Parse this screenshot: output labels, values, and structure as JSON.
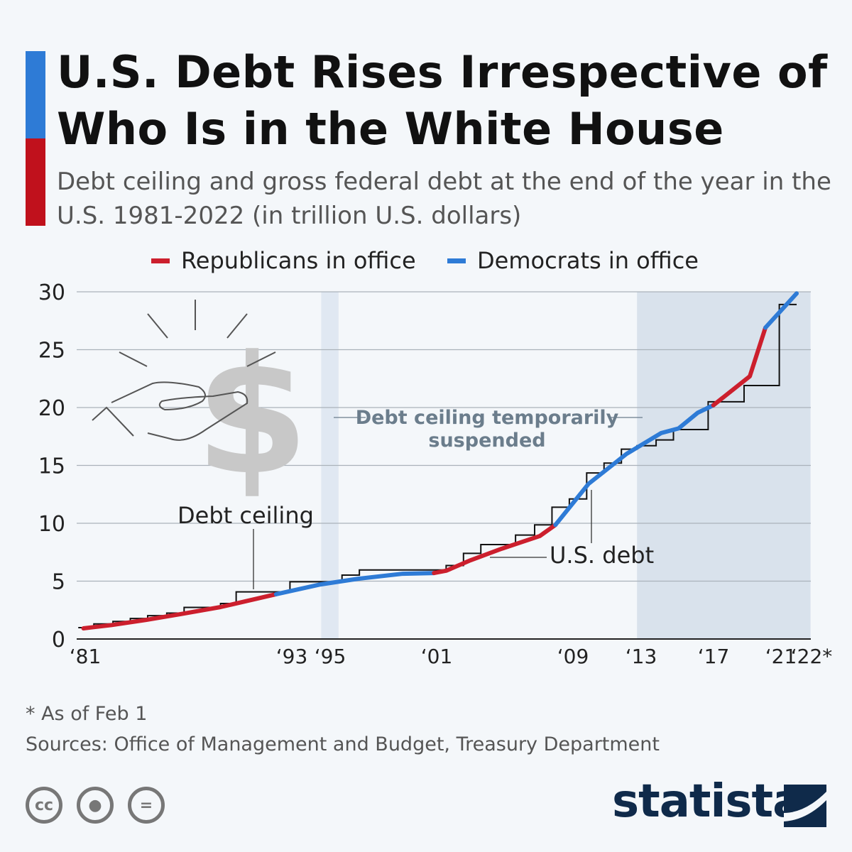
{
  "title": "U.S. Debt Rises Irrespective of Who Is in the White House",
  "subtitle": "Debt ceiling and gross federal debt at the end of the year in the U.S. 1981-2022 (in trillion U.S. dollars)",
  "legend": [
    {
      "label": "Republicans in office",
      "color": "#cc1f2d"
    },
    {
      "label": "Democrats in office",
      "color": "#2e7bd6"
    }
  ],
  "accent_colors": {
    "bar_top": "#2e7bd6",
    "bar_bottom": "#c0111c"
  },
  "chart_data": {
    "type": "line",
    "ylim": [
      0,
      30
    ],
    "yticks": [
      0,
      5,
      10,
      15,
      20,
      25,
      30
    ],
    "xlim": [
      1981,
      2022.8
    ],
    "xticks": [
      {
        "year": 1981,
        "label": "‘81"
      },
      {
        "year": 1993,
        "label": "‘93"
      },
      {
        "year": 1995,
        "label": "‘95"
      },
      {
        "year": 2001,
        "label": "‘01"
      },
      {
        "year": 2009,
        "label": "‘09"
      },
      {
        "year": 2013,
        "label": "‘13"
      },
      {
        "year": 2017,
        "label": "‘17"
      },
      {
        "year": 2021,
        "label": "‘21"
      },
      {
        "year": 2022,
        "label": "‘22*"
      }
    ],
    "grid": true,
    "legend_position": "top",
    "series": [
      {
        "name": "U.S. debt",
        "segments": [
          {
            "party": "Republicans in office",
            "points": [
              [
                1980.9,
                0.92
              ],
              [
                1982.5,
                1.2
              ],
              [
                1984.5,
                1.65
              ],
              [
                1986.5,
                2.15
              ],
              [
                1988.8,
                2.76
              ],
              [
                1989.7,
                3.07
              ],
              [
                1992.0,
                3.87
              ]
            ]
          },
          {
            "party": "Democrats in office",
            "points": [
              [
                1992.0,
                3.87
              ],
              [
                1994.5,
                4.7
              ],
              [
                1996.7,
                5.2
              ],
              [
                1999.3,
                5.64
              ],
              [
                2001.1,
                5.7
              ]
            ]
          },
          {
            "party": "Republicans in office",
            "points": [
              [
                2001.1,
                5.7
              ],
              [
                2001.8,
                5.9
              ],
              [
                2003.2,
                6.8
              ],
              [
                2005.0,
                7.8
              ],
              [
                2007.2,
                8.9
              ],
              [
                2008.1,
                9.86
              ]
            ]
          },
          {
            "party": "Democrats in office",
            "points": [
              [
                2008.1,
                9.86
              ],
              [
                2010.0,
                13.4
              ],
              [
                2012.2,
                16.0
              ],
              [
                2014.2,
                17.8
              ],
              [
                2015.2,
                18.2
              ],
              [
                2016.3,
                19.55
              ],
              [
                2017.2,
                20.2
              ]
            ]
          },
          {
            "party": "Republicans in office",
            "points": [
              [
                2017.2,
                20.2
              ],
              [
                2019.3,
                22.7
              ],
              [
                2020.2,
                26.9
              ]
            ]
          },
          {
            "party": "Democrats in office",
            "points": [
              [
                2020.2,
                26.9
              ],
              [
                2022.0,
                29.86
              ]
            ]
          }
        ]
      },
      {
        "name": "Debt ceiling",
        "step": [
          [
            1980.6,
            0.98
          ],
          [
            1981.5,
            1.3
          ],
          [
            1982.6,
            1.52
          ],
          [
            1983.6,
            1.77
          ],
          [
            1984.6,
            2.02
          ],
          [
            1985.7,
            2.24
          ],
          [
            1986.7,
            2.73
          ],
          [
            1988.8,
            3.07
          ],
          [
            1989.7,
            4.07
          ],
          [
            1992.8,
            4.95
          ],
          [
            1995.8,
            5.52
          ],
          [
            1996.8,
            5.97
          ],
          [
            2001.8,
            6.35
          ],
          [
            2002.8,
            7.4
          ],
          [
            2003.8,
            8.16
          ],
          [
            2005.8,
            8.98
          ],
          [
            2006.9,
            9.86
          ],
          [
            2007.9,
            11.39
          ],
          [
            2008.9,
            12.1
          ],
          [
            2009.9,
            14.35
          ],
          [
            2010.9,
            15.2
          ],
          [
            2011.9,
            16.4
          ],
          [
            2012.8,
            16.7
          ],
          [
            2013.9,
            17.2
          ],
          [
            2014.9,
            18.1
          ],
          [
            2016.9,
            20.5
          ],
          [
            2018.97,
            21.9
          ],
          [
            2021.0,
            28.9
          ],
          [
            2022.0,
            28.9
          ]
        ]
      }
    ],
    "shaded_periods": [
      [
        1994.6,
        1995.6
      ],
      [
        2012.8,
        2022.8
      ]
    ],
    "annotations": {
      "debt_ceiling": "Debt ceiling",
      "us_debt": "U.S. debt",
      "suspended_line1": "Debt ceiling temporarily",
      "suspended_line2": "suspended"
    }
  },
  "footnote": "* As of Feb 1",
  "sources": "Sources: Office of Management and Budget, Treasury Department",
  "license_icons": [
    "creative-commons-icon",
    "attribution-icon",
    "no-derivatives-icon"
  ],
  "logo": "statista"
}
